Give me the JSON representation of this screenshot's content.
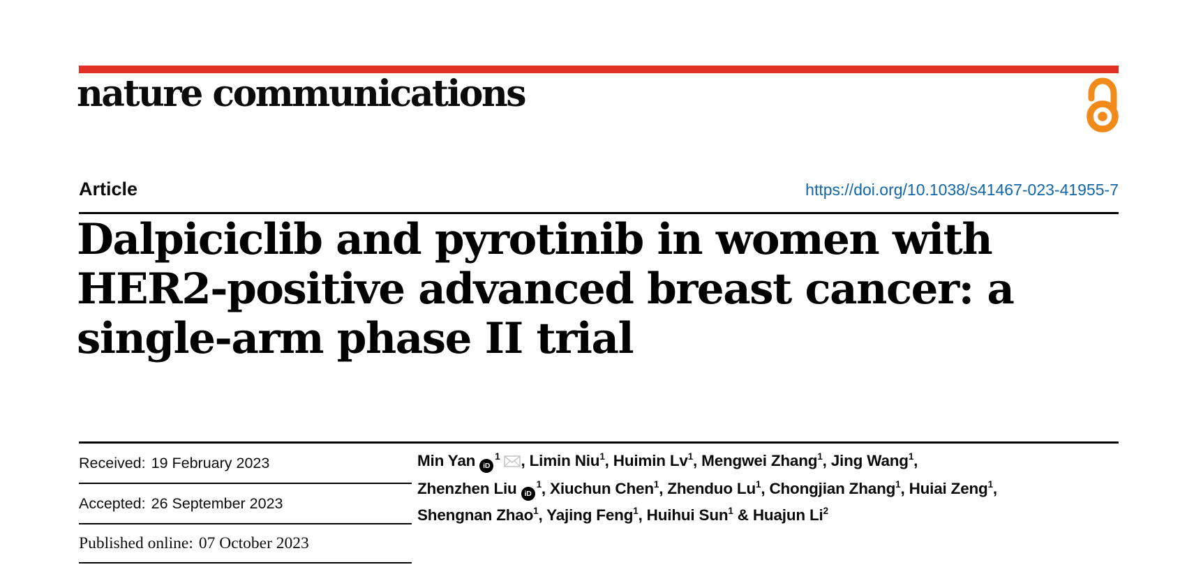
{
  "brand": {
    "journal": "nature communications",
    "bar_color": "#e33026",
    "open_access_color": "#f08b1b",
    "open_access_icon": "open-access-padlock"
  },
  "header": {
    "article_type": "Article",
    "doi": "https://doi.org/10.1038/s41467-023-41955-7",
    "doi_color": "#1066a8"
  },
  "title": {
    "lines": [
      "Dalpiciclib and pyrotinib in women with",
      "HER2-positive advanced breast cancer: a",
      "single-arm phase II trial"
    ]
  },
  "dates": [
    {
      "label": "Received:",
      "value": "19 February 2023"
    },
    {
      "label": "Accepted:",
      "value": "26 September 2023"
    },
    {
      "label": "Published online:",
      "value": "07 October 2023"
    }
  ],
  "authors": {
    "orcid_icon_text": "iD",
    "lines": [
      {
        "segments": [
          {
            "name": "Min Yan",
            "orcid": true,
            "sup": "1",
            "email": true,
            "sep": ", "
          },
          {
            "name": "Limin Niu",
            "sup": "1",
            "sep": ", "
          },
          {
            "name": "Huimin Lv",
            "sup": "1",
            "sep": ", "
          },
          {
            "name": "Mengwei Zhang",
            "sup": "1",
            "sep": ", "
          },
          {
            "name": "Jing Wang",
            "sup": "1",
            "sep": ","
          }
        ]
      },
      {
        "segments": [
          {
            "name": "Zhenzhen Liu",
            "orcid": true,
            "sup": "1",
            "sep": ", "
          },
          {
            "name": "Xiuchun Chen",
            "sup": "1",
            "sep": ", "
          },
          {
            "name": "Zhenduo Lu",
            "sup": "1",
            "sep": ", "
          },
          {
            "name": "Chongjian Zhang",
            "sup": "1",
            "sep": ", "
          },
          {
            "name": "Huiai Zeng",
            "sup": "1",
            "sep": ","
          }
        ]
      },
      {
        "segments": [
          {
            "name": "Shengnan Zhao",
            "sup": "1",
            "sep": ", "
          },
          {
            "name": "Yajing Feng",
            "sup": "1",
            "sep": ", "
          },
          {
            "name": "Huihui Sun",
            "sup": "1",
            "sep": " & "
          },
          {
            "name": "Huajun Li",
            "sup": "2",
            "sep": ""
          }
        ]
      }
    ]
  }
}
